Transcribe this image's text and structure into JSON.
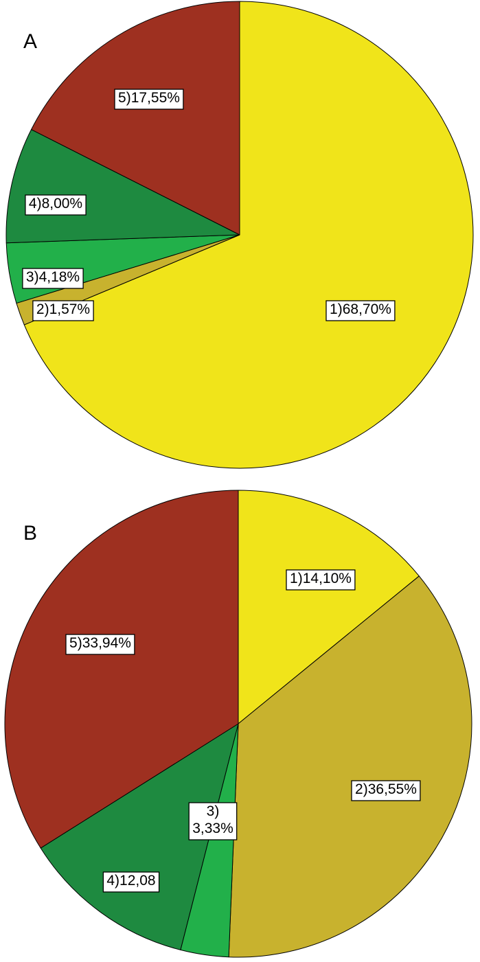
{
  "chart_data": [
    {
      "type": "pie",
      "title": "A",
      "colors": [
        "#F0E41A",
        "#C8B22E",
        "#22B04A",
        "#1E8A40",
        "#9E3020"
      ],
      "slices": [
        {
          "category": "1",
          "value": 68.7,
          "label_lines": [
            "1)68,70%"
          ]
        },
        {
          "category": "2",
          "value": 1.57,
          "label_lines": [
            "2)1,57%"
          ]
        },
        {
          "category": "3",
          "value": 4.18,
          "label_lines": [
            "3)4,18%"
          ]
        },
        {
          "category": "4",
          "value": 8.0,
          "label_lines": [
            "4)8,00%"
          ]
        },
        {
          "category": "5",
          "value": 17.55,
          "label_lines": [
            "5)17,55%"
          ]
        }
      ]
    },
    {
      "type": "pie",
      "title": "B",
      "colors": [
        "#F0E41A",
        "#C8B22E",
        "#22B04A",
        "#1E8A40",
        "#9E3020"
      ],
      "slices": [
        {
          "category": "1",
          "value": 14.1,
          "label_lines": [
            "1)14,10%"
          ]
        },
        {
          "category": "2",
          "value": 36.55,
          "label_lines": [
            "2)36,55%"
          ]
        },
        {
          "category": "3",
          "value": 3.33,
          "label_lines": [
            "3)",
            "3,33%"
          ]
        },
        {
          "category": "4",
          "value": 12.08,
          "label_lines": [
            "4)12,08"
          ]
        },
        {
          "category": "5",
          "value": 33.94,
          "label_lines": [
            "5)33,94%"
          ]
        }
      ]
    }
  ]
}
